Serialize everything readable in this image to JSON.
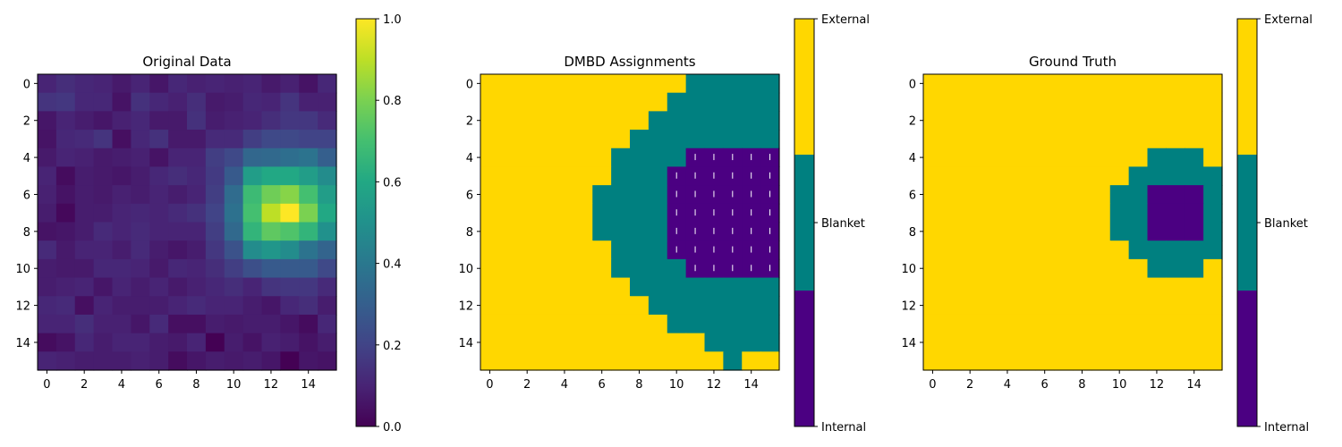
{
  "chart_data": [
    {
      "type": "heatmap",
      "title": "Original Data",
      "colormap": "viridis",
      "x_ticks": [
        "0",
        "2",
        "4",
        "6",
        "8",
        "10",
        "12",
        "14"
      ],
      "y_ticks": [
        "0",
        "2",
        "4",
        "6",
        "8",
        "10",
        "12",
        "14"
      ],
      "colorbar": {
        "range": [
          0,
          1
        ],
        "ticks": [
          "0.0",
          "0.2",
          "0.4",
          "0.6",
          "0.8",
          "1.0"
        ]
      },
      "values": [
        [
          0.1,
          0.13,
          0.11,
          0.1,
          0.07,
          0.1,
          0.06,
          0.11,
          0.09,
          0.1,
          0.09,
          0.1,
          0.07,
          0.09,
          0.05,
          0.11
        ],
        [
          0.15,
          0.16,
          0.11,
          0.11,
          0.05,
          0.14,
          0.11,
          0.09,
          0.13,
          0.07,
          0.08,
          0.11,
          0.1,
          0.15,
          0.09,
          0.09
        ],
        [
          0.06,
          0.1,
          0.08,
          0.06,
          0.09,
          0.11,
          0.07,
          0.07,
          0.14,
          0.08,
          0.09,
          0.1,
          0.13,
          0.16,
          0.16,
          0.12
        ],
        [
          0.05,
          0.11,
          0.12,
          0.15,
          0.04,
          0.11,
          0.14,
          0.07,
          0.07,
          0.12,
          0.12,
          0.18,
          0.22,
          0.22,
          0.2,
          0.2
        ],
        [
          0.07,
          0.1,
          0.09,
          0.07,
          0.08,
          0.09,
          0.05,
          0.1,
          0.1,
          0.18,
          0.22,
          0.33,
          0.34,
          0.36,
          0.38,
          0.3
        ],
        [
          0.1,
          0.03,
          0.08,
          0.07,
          0.06,
          0.08,
          0.11,
          0.13,
          0.11,
          0.17,
          0.28,
          0.55,
          0.6,
          0.6,
          0.55,
          0.48
        ],
        [
          0.09,
          0.05,
          0.08,
          0.07,
          0.09,
          0.08,
          0.1,
          0.08,
          0.1,
          0.18,
          0.35,
          0.68,
          0.78,
          0.82,
          0.7,
          0.55
        ],
        [
          0.08,
          0.02,
          0.08,
          0.08,
          0.1,
          0.11,
          0.1,
          0.12,
          0.14,
          0.2,
          0.37,
          0.7,
          0.9,
          1.0,
          0.8,
          0.6
        ],
        [
          0.05,
          0.06,
          0.08,
          0.12,
          0.1,
          0.12,
          0.1,
          0.1,
          0.1,
          0.18,
          0.34,
          0.65,
          0.75,
          0.72,
          0.65,
          0.5
        ],
        [
          0.12,
          0.07,
          0.1,
          0.1,
          0.08,
          0.12,
          0.08,
          0.06,
          0.08,
          0.16,
          0.25,
          0.48,
          0.52,
          0.48,
          0.38,
          0.32
        ],
        [
          0.08,
          0.07,
          0.07,
          0.11,
          0.11,
          0.1,
          0.07,
          0.11,
          0.1,
          0.13,
          0.18,
          0.24,
          0.28,
          0.28,
          0.28,
          0.22
        ],
        [
          0.08,
          0.09,
          0.1,
          0.06,
          0.1,
          0.08,
          0.1,
          0.07,
          0.09,
          0.11,
          0.13,
          0.1,
          0.15,
          0.16,
          0.16,
          0.12
        ],
        [
          0.11,
          0.12,
          0.04,
          0.1,
          0.08,
          0.08,
          0.08,
          0.1,
          0.12,
          0.1,
          0.1,
          0.08,
          0.06,
          0.11,
          0.13,
          0.08
        ],
        [
          0.1,
          0.1,
          0.13,
          0.09,
          0.09,
          0.06,
          0.12,
          0.04,
          0.04,
          0.08,
          0.07,
          0.08,
          0.08,
          0.06,
          0.03,
          0.11
        ],
        [
          0.03,
          0.05,
          0.11,
          0.08,
          0.1,
          0.1,
          0.08,
          0.07,
          0.1,
          0.0,
          0.08,
          0.05,
          0.09,
          0.08,
          0.05,
          0.08
        ],
        [
          0.1,
          0.09,
          0.08,
          0.08,
          0.08,
          0.09,
          0.08,
          0.03,
          0.06,
          0.08,
          0.07,
          0.08,
          0.06,
          0.0,
          0.06,
          0.05
        ]
      ]
    },
    {
      "type": "heatmap",
      "title": "DMBD Assignments",
      "categories": [
        "Internal",
        "Blanket",
        "External"
      ],
      "x_ticks": [
        "0",
        "2",
        "4",
        "6",
        "8",
        "10",
        "12",
        "14"
      ],
      "y_ticks": [
        "0",
        "2",
        "4",
        "6",
        "8",
        "10",
        "12",
        "14"
      ],
      "colorbar": {
        "ticks": [
          "Internal",
          "Blanket",
          "External"
        ]
      },
      "hatched_category": "Internal",
      "values": [
        [
          2,
          2,
          2,
          2,
          2,
          2,
          2,
          2,
          2,
          2,
          2,
          1,
          1,
          1,
          1,
          1
        ],
        [
          2,
          2,
          2,
          2,
          2,
          2,
          2,
          2,
          2,
          2,
          1,
          1,
          1,
          1,
          1,
          1
        ],
        [
          2,
          2,
          2,
          2,
          2,
          2,
          2,
          2,
          2,
          1,
          1,
          1,
          1,
          1,
          1,
          1
        ],
        [
          2,
          2,
          2,
          2,
          2,
          2,
          2,
          2,
          1,
          1,
          1,
          1,
          1,
          1,
          1,
          1
        ],
        [
          2,
          2,
          2,
          2,
          2,
          2,
          2,
          1,
          1,
          1,
          1,
          0,
          0,
          0,
          0,
          0
        ],
        [
          2,
          2,
          2,
          2,
          2,
          2,
          2,
          1,
          1,
          1,
          0,
          0,
          0,
          0,
          0,
          0
        ],
        [
          2,
          2,
          2,
          2,
          2,
          2,
          1,
          1,
          1,
          1,
          0,
          0,
          0,
          0,
          0,
          0
        ],
        [
          2,
          2,
          2,
          2,
          2,
          2,
          1,
          1,
          1,
          1,
          0,
          0,
          0,
          0,
          0,
          0
        ],
        [
          2,
          2,
          2,
          2,
          2,
          2,
          1,
          1,
          1,
          1,
          0,
          0,
          0,
          0,
          0,
          0
        ],
        [
          2,
          2,
          2,
          2,
          2,
          2,
          2,
          1,
          1,
          1,
          0,
          0,
          0,
          0,
          0,
          0
        ],
        [
          2,
          2,
          2,
          2,
          2,
          2,
          2,
          1,
          1,
          1,
          1,
          0,
          0,
          0,
          0,
          0
        ],
        [
          2,
          2,
          2,
          2,
          2,
          2,
          2,
          2,
          1,
          1,
          1,
          1,
          1,
          1,
          1,
          1
        ],
        [
          2,
          2,
          2,
          2,
          2,
          2,
          2,
          2,
          2,
          1,
          1,
          1,
          1,
          1,
          1,
          1
        ],
        [
          2,
          2,
          2,
          2,
          2,
          2,
          2,
          2,
          2,
          2,
          1,
          1,
          1,
          1,
          1,
          1
        ],
        [
          2,
          2,
          2,
          2,
          2,
          2,
          2,
          2,
          2,
          2,
          2,
          2,
          1,
          1,
          1,
          1
        ],
        [
          2,
          2,
          2,
          2,
          2,
          2,
          2,
          2,
          2,
          2,
          2,
          2,
          2,
          1,
          2,
          2
        ]
      ]
    },
    {
      "type": "heatmap",
      "title": "Ground Truth",
      "categories": [
        "Internal",
        "Blanket",
        "External"
      ],
      "x_ticks": [
        "0",
        "2",
        "4",
        "6",
        "8",
        "10",
        "12",
        "14"
      ],
      "y_ticks": [
        "0",
        "2",
        "4",
        "6",
        "8",
        "10",
        "12",
        "14"
      ],
      "colorbar": {
        "ticks": [
          "Internal",
          "Blanket",
          "External"
        ]
      },
      "values": [
        [
          2,
          2,
          2,
          2,
          2,
          2,
          2,
          2,
          2,
          2,
          2,
          2,
          2,
          2,
          2,
          2
        ],
        [
          2,
          2,
          2,
          2,
          2,
          2,
          2,
          2,
          2,
          2,
          2,
          2,
          2,
          2,
          2,
          2
        ],
        [
          2,
          2,
          2,
          2,
          2,
          2,
          2,
          2,
          2,
          2,
          2,
          2,
          2,
          2,
          2,
          2
        ],
        [
          2,
          2,
          2,
          2,
          2,
          2,
          2,
          2,
          2,
          2,
          2,
          2,
          2,
          2,
          2,
          2
        ],
        [
          2,
          2,
          2,
          2,
          2,
          2,
          2,
          2,
          2,
          2,
          2,
          2,
          1,
          1,
          1,
          2
        ],
        [
          2,
          2,
          2,
          2,
          2,
          2,
          2,
          2,
          2,
          2,
          2,
          1,
          1,
          1,
          1,
          1
        ],
        [
          2,
          2,
          2,
          2,
          2,
          2,
          2,
          2,
          2,
          2,
          1,
          1,
          0,
          0,
          0,
          1
        ],
        [
          2,
          2,
          2,
          2,
          2,
          2,
          2,
          2,
          2,
          2,
          1,
          1,
          0,
          0,
          0,
          1
        ],
        [
          2,
          2,
          2,
          2,
          2,
          2,
          2,
          2,
          2,
          2,
          1,
          1,
          0,
          0,
          0,
          1
        ],
        [
          2,
          2,
          2,
          2,
          2,
          2,
          2,
          2,
          2,
          2,
          2,
          1,
          1,
          1,
          1,
          1
        ],
        [
          2,
          2,
          2,
          2,
          2,
          2,
          2,
          2,
          2,
          2,
          2,
          2,
          1,
          1,
          1,
          2
        ],
        [
          2,
          2,
          2,
          2,
          2,
          2,
          2,
          2,
          2,
          2,
          2,
          2,
          2,
          2,
          2,
          2
        ],
        [
          2,
          2,
          2,
          2,
          2,
          2,
          2,
          2,
          2,
          2,
          2,
          2,
          2,
          2,
          2,
          2
        ],
        [
          2,
          2,
          2,
          2,
          2,
          2,
          2,
          2,
          2,
          2,
          2,
          2,
          2,
          2,
          2,
          2
        ],
        [
          2,
          2,
          2,
          2,
          2,
          2,
          2,
          2,
          2,
          2,
          2,
          2,
          2,
          2,
          2,
          2
        ],
        [
          2,
          2,
          2,
          2,
          2,
          2,
          2,
          2,
          2,
          2,
          2,
          2,
          2,
          2,
          2,
          2
        ]
      ]
    }
  ],
  "colors": {
    "internal": "#4b0082",
    "blanket": "#008080",
    "external": "#ffd700",
    "hatch": "#ffffff",
    "axis": "#000000"
  }
}
